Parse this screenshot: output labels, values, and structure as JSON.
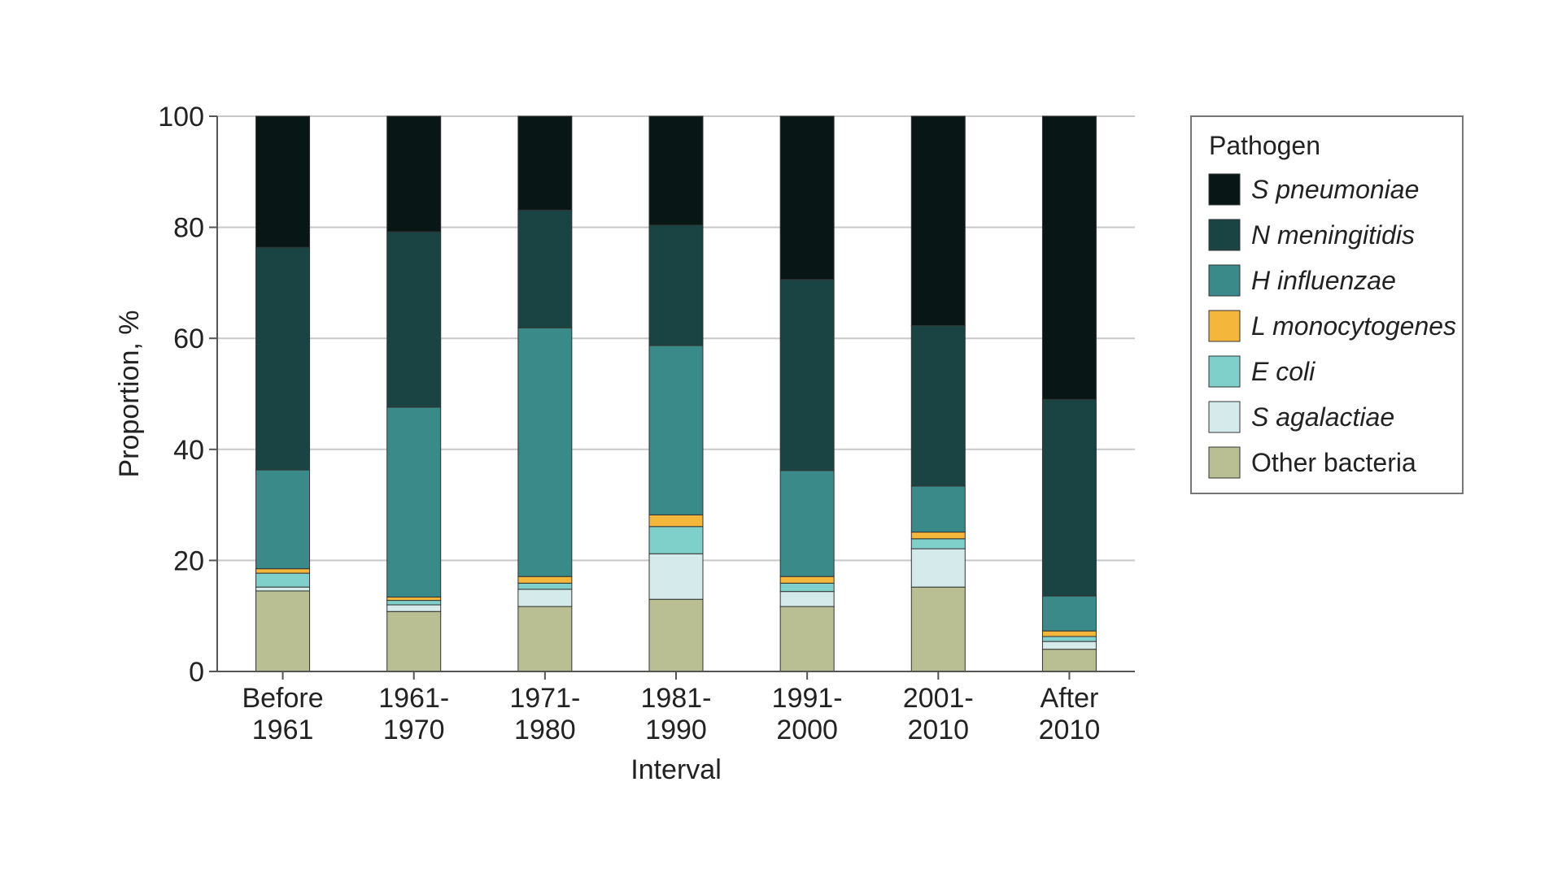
{
  "chart_data": {
    "type": "bar",
    "stacked": true,
    "title": "",
    "xlabel": "Interval",
    "ylabel": "Proportion, %",
    "ylim": [
      0,
      100
    ],
    "yticks": [
      0,
      20,
      40,
      60,
      80,
      100
    ],
    "grid": "horizontal",
    "legend_position": "right",
    "legend_title": "Pathogen",
    "categories": [
      [
        "Before",
        "1961"
      ],
      [
        "1961-",
        "1970"
      ],
      [
        "1971-",
        "1980"
      ],
      [
        "1981-",
        "1990"
      ],
      [
        "1991-",
        "2000"
      ],
      [
        "2001-",
        "2010"
      ],
      [
        "After",
        "2010"
      ]
    ],
    "series": [
      {
        "name": "Other bacteria",
        "italic": false,
        "color": "#b9bf92",
        "values": [
          14.5,
          10.8,
          11.7,
          13.0,
          11.7,
          15.2,
          4.0
        ]
      },
      {
        "name": "S agalactiae",
        "italic": true,
        "color": "#d5ebeb",
        "values": [
          0.7,
          1.2,
          3.1,
          8.2,
          2.7,
          6.9,
          1.4
        ]
      },
      {
        "name": "E coli",
        "italic": true,
        "color": "#7fcfcb",
        "values": [
          2.5,
          0.8,
          1.1,
          4.9,
          1.5,
          1.8,
          0.9
        ]
      },
      {
        "name": "L monocytogenes",
        "italic": true,
        "color": "#f5b63c",
        "values": [
          0.8,
          0.6,
          1.2,
          2.1,
          1.2,
          1.2,
          1.0
        ]
      },
      {
        "name": "H influenzae",
        "italic": true,
        "color": "#3a8a8a",
        "values": [
          17.8,
          34.2,
          44.8,
          30.5,
          19.1,
          8.3,
          6.3
        ]
      },
      {
        "name": "N meningitidis",
        "italic": true,
        "color": "#1a4443",
        "values": [
          40.1,
          31.6,
          21.2,
          21.7,
          34.4,
          28.9,
          35.4
        ]
      },
      {
        "name": "S pneumoniae",
        "italic": true,
        "color": "#081615",
        "values": [
          23.6,
          20.8,
          16.9,
          19.6,
          29.4,
          37.7,
          51.0
        ]
      }
    ]
  }
}
